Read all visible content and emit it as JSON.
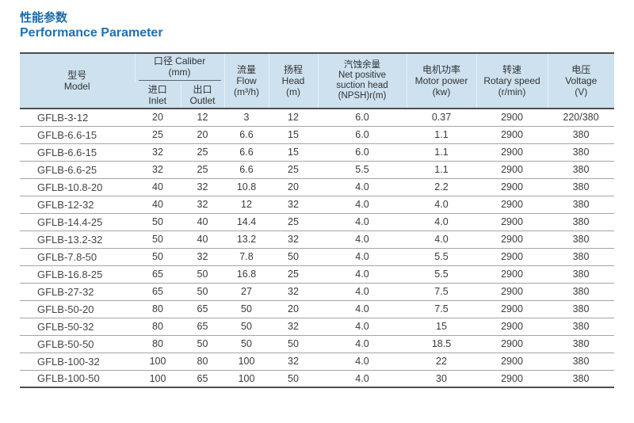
{
  "page": {
    "title_zh": "性能参数",
    "title_en": "Performance Parameter"
  },
  "colors": {
    "title_blue": "#1f70b2",
    "header_bg": "#cde1ef",
    "dark_border": "#4d4d4d",
    "row_line": "#a5a5a5",
    "text": "#3b3b3b"
  },
  "table": {
    "columns": {
      "model": {
        "zh": "型号",
        "en": "Model"
      },
      "caliber": {
        "zh": "口径",
        "en": "Caliber",
        "unit": "(mm)"
      },
      "inlet": {
        "zh": "进口",
        "en": "Inlet"
      },
      "outlet": {
        "zh": "出口",
        "en": "Outlet"
      },
      "flow": {
        "zh": "流量",
        "en": "Flow",
        "unit": "(m³/h)"
      },
      "head": {
        "zh": "扬程",
        "en": "Head",
        "unit": "(m)"
      },
      "npsh": {
        "zh": "汽蚀余量",
        "en1": "Net positive",
        "en2": "suction head",
        "unit": "(NPSH)r(m)"
      },
      "motor": {
        "zh": "电机功率",
        "en": "Motor power",
        "unit": "(kw)"
      },
      "speed": {
        "zh": "转速",
        "en": "Rotary speed",
        "unit": "(r/min)"
      },
      "voltage": {
        "zh": "电压",
        "en": "Voltage",
        "unit": "(V)"
      }
    },
    "rows": [
      [
        "GFLB-3-12",
        "20",
        "12",
        "3",
        "12",
        "6.0",
        "0.37",
        "2900",
        "220/380"
      ],
      [
        "GFLB-6.6-15",
        "25",
        "20",
        "6.6",
        "15",
        "6.0",
        "1.1",
        "2900",
        "380"
      ],
      [
        "GFLB-6.6-15",
        "32",
        "25",
        "6.6",
        "15",
        "6.0",
        "1.1",
        "2900",
        "380"
      ],
      [
        "GFLB-6.6-25",
        "32",
        "25",
        "6.6",
        "25",
        "5.5",
        "1.1",
        "2900",
        "380"
      ],
      [
        "GFLB-10.8-20",
        "40",
        "32",
        "10.8",
        "20",
        "4.0",
        "2.2",
        "2900",
        "380"
      ],
      [
        "GFLB-12-32",
        "40",
        "32",
        "12",
        "32",
        "4.0",
        "4.0",
        "2900",
        "380"
      ],
      [
        "GFLB-14.4-25",
        "50",
        "40",
        "14.4",
        "25",
        "4.0",
        "4.0",
        "2900",
        "380"
      ],
      [
        "GFLB-13.2-32",
        "50",
        "40",
        "13.2",
        "32",
        "4.0",
        "4.0",
        "2900",
        "380"
      ],
      [
        "GFLB-7.8-50",
        "50",
        "32",
        "7.8",
        "50",
        "4.0",
        "5.5",
        "2900",
        "380"
      ],
      [
        "GFLB-16.8-25",
        "65",
        "50",
        "16.8",
        "25",
        "4.0",
        "5.5",
        "2900",
        "380"
      ],
      [
        "GFLB-27-32",
        "65",
        "50",
        "27",
        "32",
        "4.0",
        "7.5",
        "2900",
        "380"
      ],
      [
        "GFLB-50-20",
        "80",
        "65",
        "50",
        "20",
        "4.0",
        "7.5",
        "2900",
        "380"
      ],
      [
        "GFLB-50-32",
        "80",
        "65",
        "50",
        "32",
        "4.0",
        "15",
        "2900",
        "380"
      ],
      [
        "GFLB-50-50",
        "80",
        "50",
        "50",
        "50",
        "4.0",
        "18.5",
        "2900",
        "380"
      ],
      [
        "GFLB-100-32",
        "100",
        "80",
        "100",
        "32",
        "4.0",
        "22",
        "2900",
        "380"
      ],
      [
        "GFLB-100-50",
        "100",
        "65",
        "100",
        "50",
        "4.0",
        "30",
        "2900",
        "380"
      ]
    ]
  }
}
